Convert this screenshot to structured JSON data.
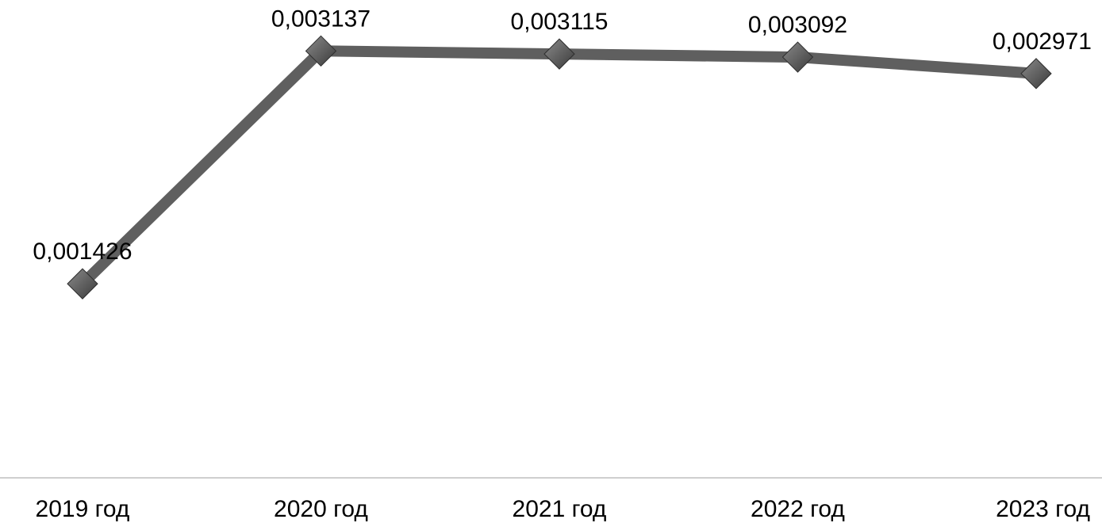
{
  "chart_data": {
    "type": "line",
    "categories": [
      "2019 год",
      "2020 год",
      "2021 год",
      "2022 год",
      "2023 год"
    ],
    "series": [
      {
        "values": [
          0.001426,
          0.003137,
          0.003115,
          0.003092,
          0.002971
        ],
        "labels": [
          "0,001426",
          "0,003137",
          "0,003115",
          "0,003092",
          "0,002971"
        ]
      }
    ],
    "title": "",
    "xlabel": "",
    "ylabel": "",
    "ylim": [
      0,
      0.0035
    ],
    "grid": false,
    "legend": "none",
    "colors": {
      "line": "#5f5f5f",
      "marker_light": "#8a8a8a",
      "marker_dark": "#3a3a3a",
      "axis": "#bfbfbf",
      "text": "#000000"
    },
    "marker": "diamond"
  }
}
